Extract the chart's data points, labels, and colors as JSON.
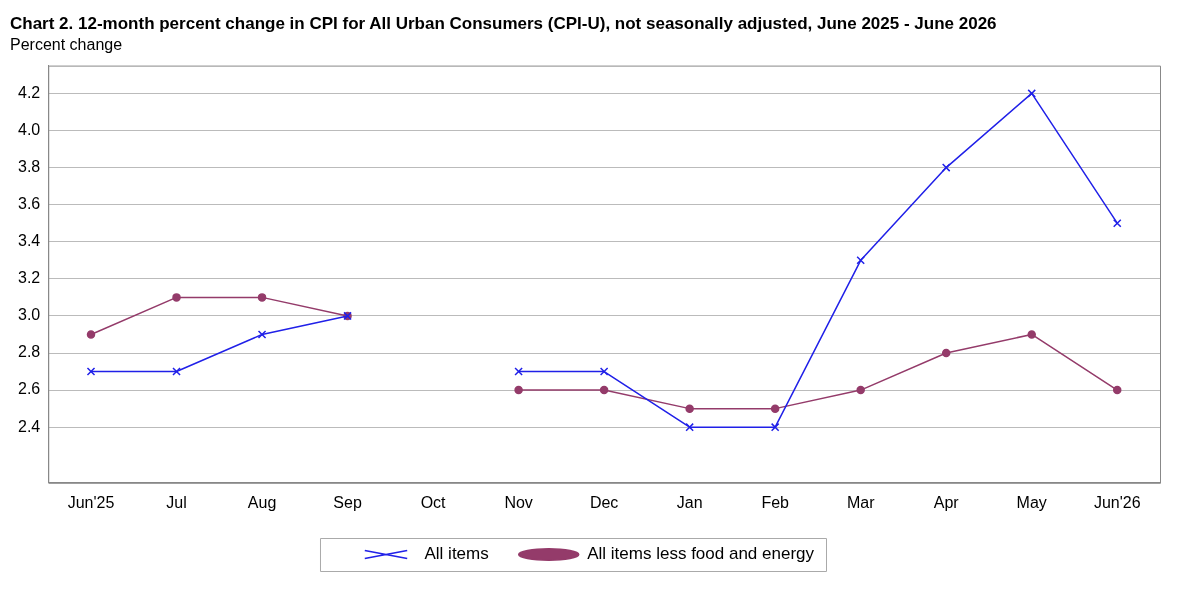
{
  "chart_data": {
    "type": "line",
    "title": "Chart 2. 12-month percent change in CPI for All Urban Consumers (CPI-U), not seasonally adjusted, June 2025 - June 2026",
    "ylabel": "Percent change",
    "categories": [
      "Jun'25",
      "Jul",
      "Aug",
      "Sep",
      "Oct",
      "Nov",
      "Dec",
      "Jan",
      "Feb",
      "Mar",
      "Apr",
      "May",
      "Jun'26"
    ],
    "series": [
      {
        "name": "All items",
        "color": "#2020e8",
        "marker": "cross",
        "values": [
          2.7,
          2.7,
          2.9,
          3.0,
          null,
          2.7,
          2.7,
          2.4,
          2.4,
          3.3,
          3.8,
          4.2,
          3.5
        ]
      },
      {
        "name": "All items less food and energy",
        "color": "#943b6a",
        "marker": "circle",
        "values": [
          2.9,
          3.1,
          3.1,
          3.0,
          null,
          2.6,
          2.6,
          2.5,
          2.5,
          2.6,
          2.8,
          2.9,
          2.6
        ]
      }
    ],
    "ylim": [
      2.1,
      4.35
    ],
    "yticks": [
      2.4,
      2.6,
      2.8,
      {
        "value": 3,
        "label": "3.0"
      },
      3.2,
      3.4,
      3.6,
      3.8,
      {
        "value": 4,
        "label": "4.0"
      },
      4.2
    ],
    "grid": "y",
    "legend": "bottom",
    "line_style": "solid"
  }
}
